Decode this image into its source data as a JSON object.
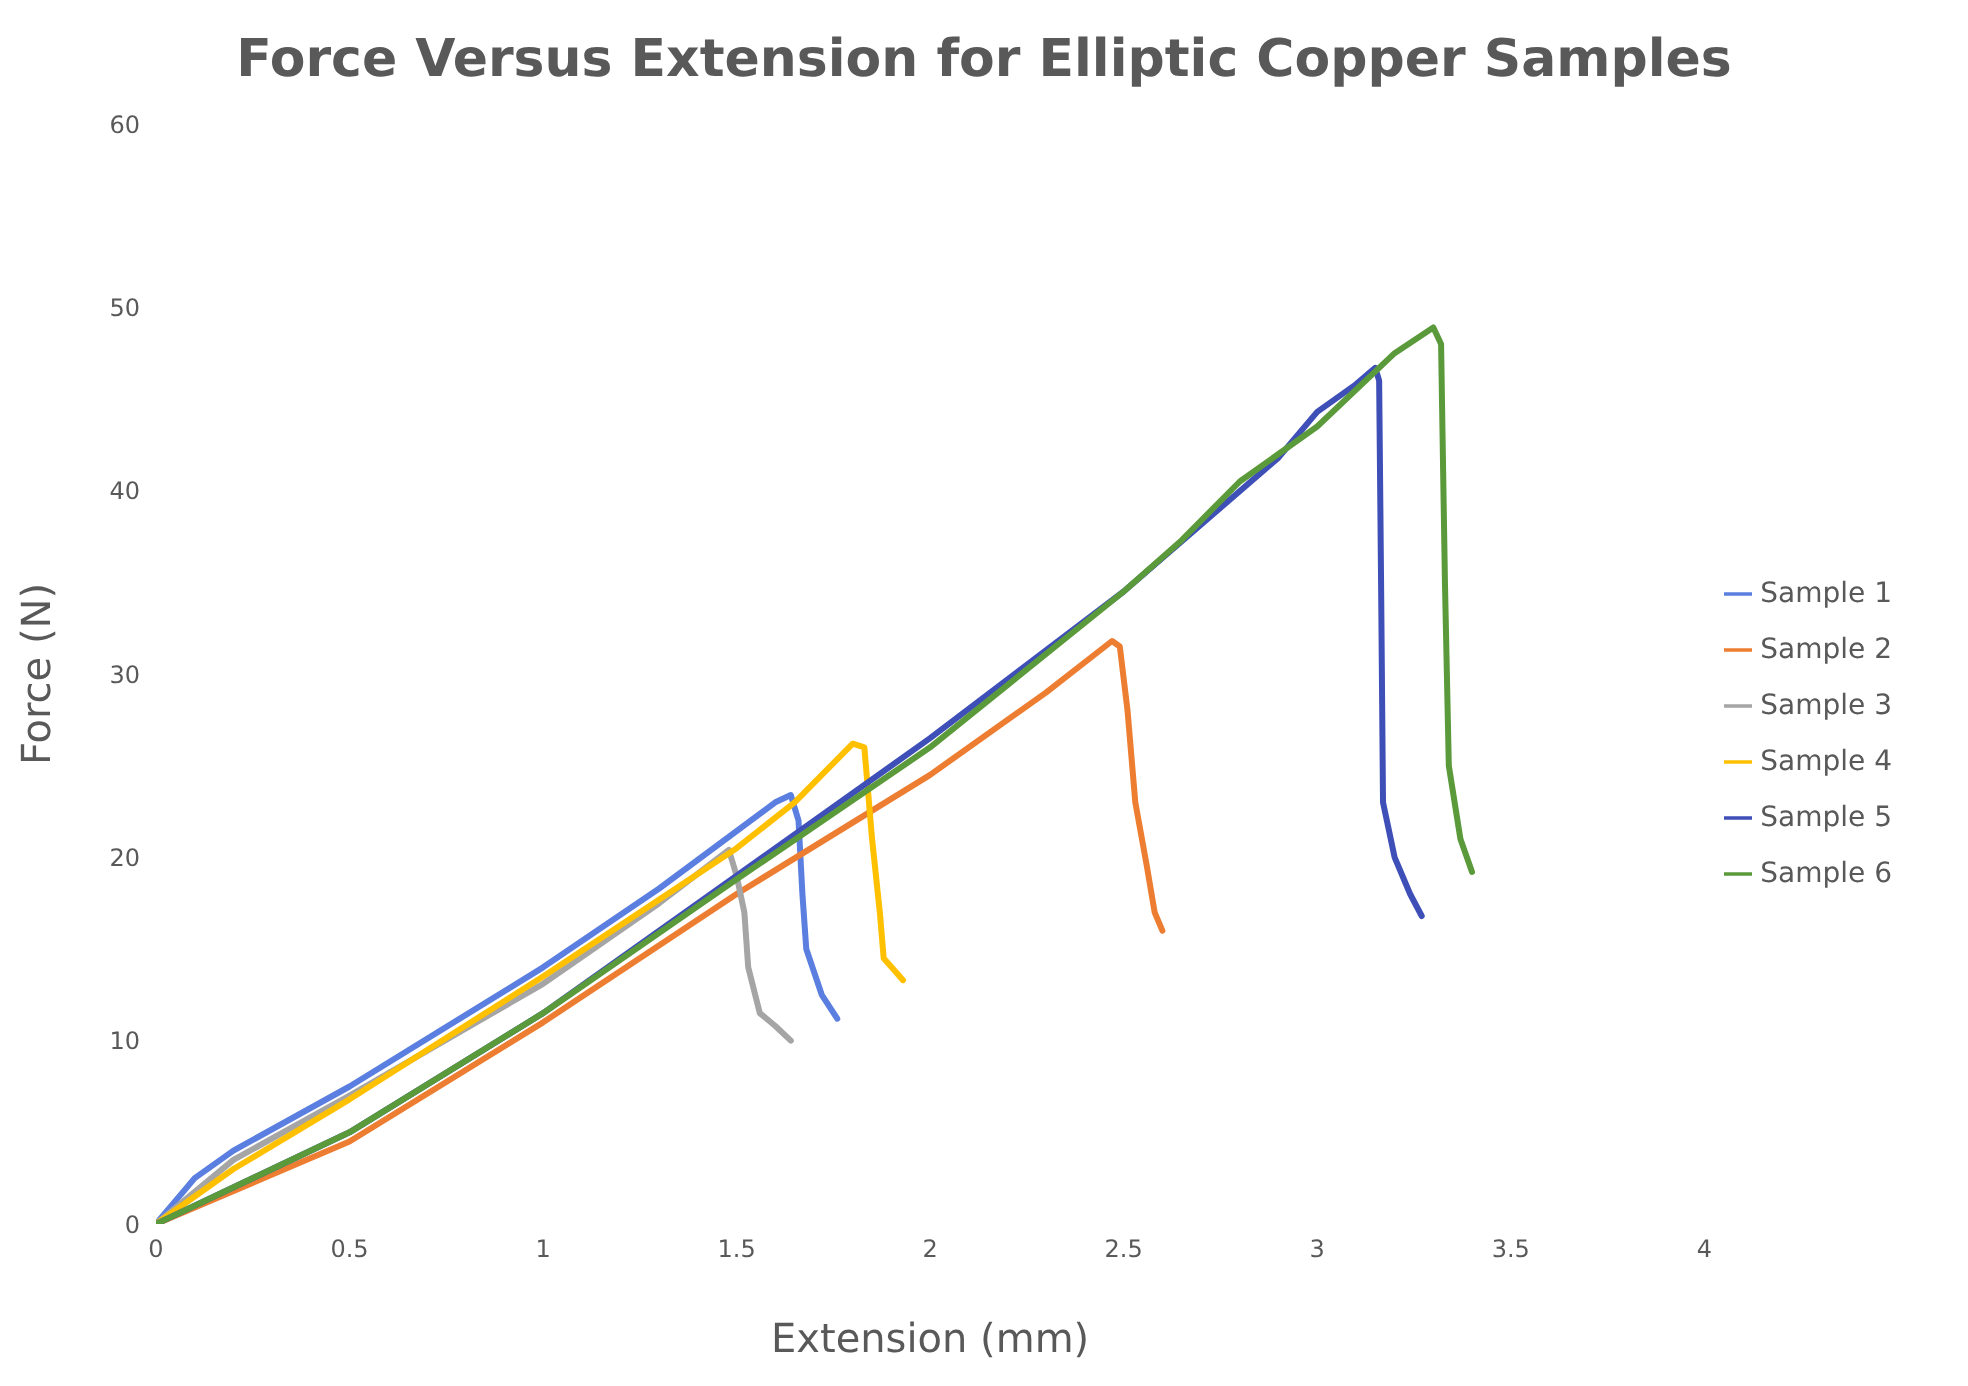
{
  "chart_data": {
    "type": "line",
    "title": "Force Versus Extension for Elliptic Copper Samples",
    "xlabel": "Extension (mm)",
    "ylabel": "Force (N)",
    "xlim": [
      0,
      4
    ],
    "xticks": [
      0,
      0.5,
      1,
      1.5,
      2,
      2.5,
      3,
      3.5,
      4
    ],
    "ylim": [
      0,
      60
    ],
    "yticks": [
      0,
      10,
      20,
      30,
      40,
      50,
      60
    ],
    "grid": false,
    "legend": "right",
    "marker": "none",
    "series": [
      {
        "name": "Sample 1",
        "color": "#5b7fe0",
        "x": [
          0,
          0.1,
          0.2,
          0.5,
          1,
          1.3,
          1.6,
          1.64,
          1.66,
          1.67,
          1.68,
          1.72,
          1.76
        ],
        "values": [
          0,
          2.5,
          4,
          7.5,
          14,
          18.3,
          23,
          23.4,
          22,
          18,
          15,
          12.5,
          11.2
        ]
      },
      {
        "name": "Sample 2",
        "color": "#ed7d31",
        "x": [
          0,
          0.5,
          1,
          1.5,
          2,
          2.3,
          2.47,
          2.49,
          2.51,
          2.53,
          2.56,
          2.58,
          2.6
        ],
        "values": [
          0,
          4.5,
          11,
          18,
          24.5,
          29,
          31.8,
          31.5,
          28,
          23,
          19.5,
          17,
          16
        ]
      },
      {
        "name": "Sample 3",
        "color": "#a5a5a5",
        "x": [
          0,
          0.2,
          0.5,
          1,
          1.3,
          1.48,
          1.5,
          1.52,
          1.53,
          1.56,
          1.6,
          1.64
        ],
        "values": [
          0,
          3.5,
          7,
          13.1,
          17.5,
          20.4,
          19,
          17,
          14,
          11.5,
          10.8,
          10
        ]
      },
      {
        "name": "Sample 4",
        "color": "#ffc000",
        "x": [
          0,
          0.2,
          0.5,
          1,
          1.5,
          1.65,
          1.8,
          1.83,
          1.85,
          1.87,
          1.88,
          1.93
        ],
        "values": [
          0,
          3,
          6.8,
          13.5,
          20.5,
          23,
          26.2,
          26,
          21,
          17,
          14.5,
          13.3
        ]
      },
      {
        "name": "Sample 5",
        "color": "#3f4fb8",
        "x": [
          0,
          0.5,
          1,
          1.5,
          2,
          2.5,
          2.9,
          3,
          3.1,
          3.15,
          3.16,
          3.165,
          3.17,
          3.2,
          3.24,
          3.27
        ],
        "values": [
          0,
          5,
          11.5,
          19,
          26.5,
          34.5,
          41.8,
          44.3,
          45.8,
          46.7,
          46,
          35,
          23,
          20,
          18,
          16.8
        ]
      },
      {
        "name": "Sample 6",
        "color": "#5a9a3a",
        "x": [
          0,
          0.5,
          1,
          1.5,
          2,
          2.5,
          2.65,
          2.8,
          3,
          3.2,
          3.3,
          3.32,
          3.33,
          3.34,
          3.37,
          3.4
        ],
        "values": [
          0,
          5,
          11.5,
          18.8,
          26,
          34.5,
          37.3,
          40.5,
          43.5,
          47.5,
          48.9,
          48,
          35,
          25,
          21,
          19.2
        ]
      }
    ]
  }
}
